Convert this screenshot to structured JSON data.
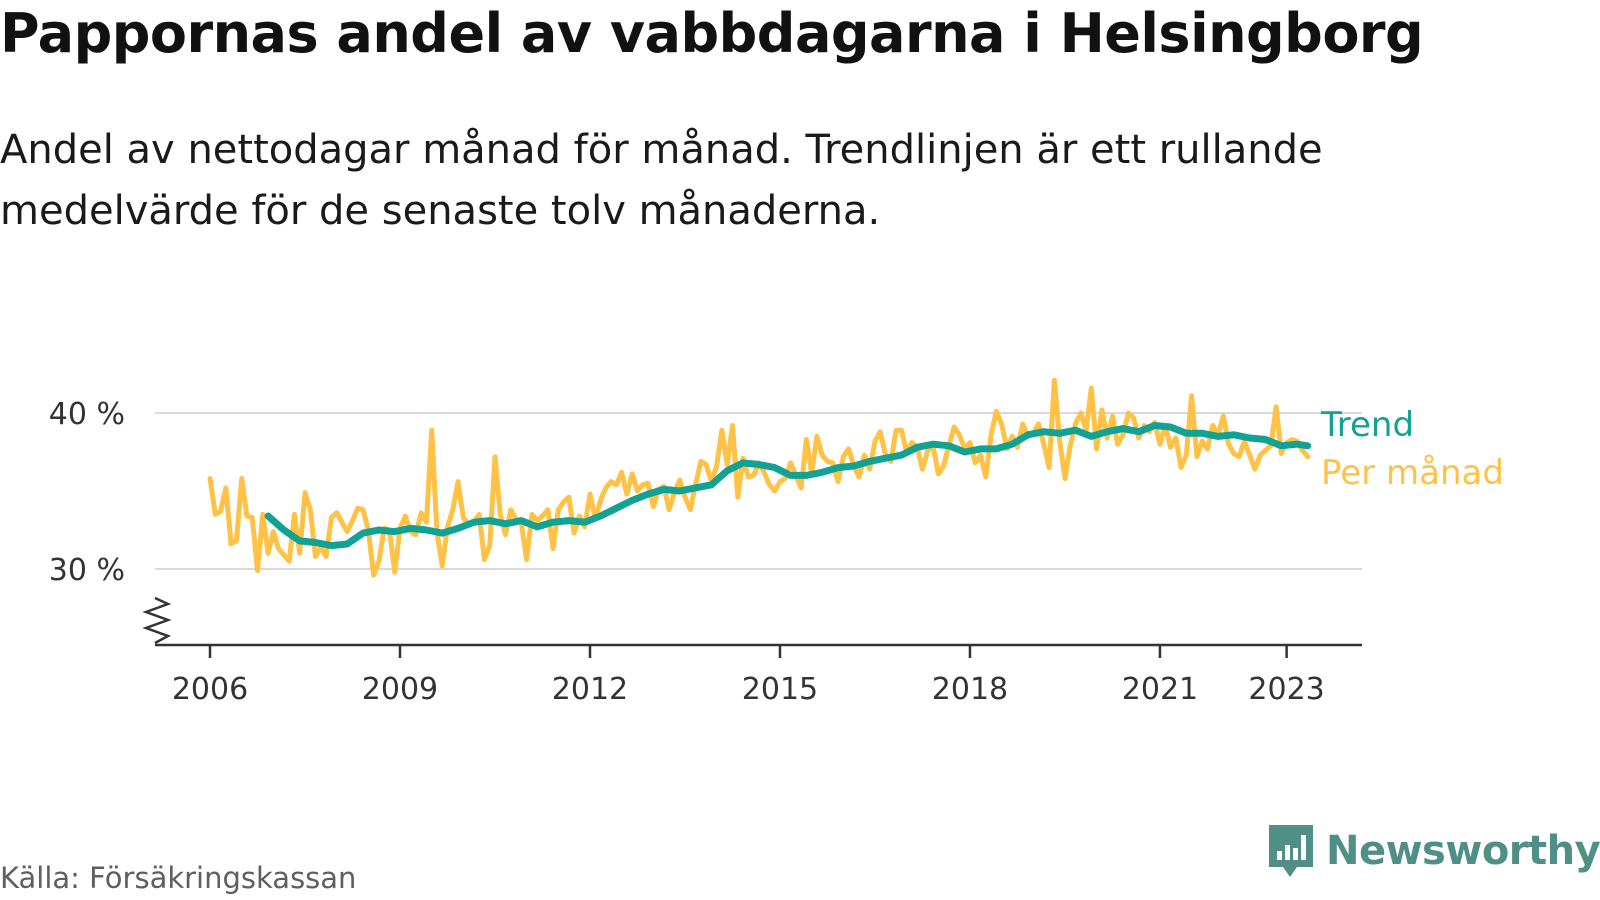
{
  "title": "Pappornas andel av vabbdagarna i Helsingborg",
  "subtitle": "Andel av nettodagar månad för månad. Trendlinjen är ett rullande medelvärde för de senaste tolv månaderna.",
  "source": "Källa: Försäkringskassan",
  "brand": {
    "name": "Newsworthy",
    "icon": "newsworthy-logo-icon"
  },
  "colors": {
    "trend": "#12a193",
    "monthly": "#ffc247",
    "grid": "#d9d9d9",
    "axis": "#333333"
  },
  "chart_data": {
    "type": "line",
    "title": "Pappornas andel av vabbdagarna i Helsingborg",
    "xlabel": "",
    "ylabel": "",
    "x_ticks": [
      2006,
      2009,
      2012,
      2015,
      2018,
      2021,
      2023
    ],
    "y_ticks": [
      30,
      40
    ],
    "y_tick_labels": [
      "30 %",
      "40 %"
    ],
    "ylim": [
      25,
      42.5
    ],
    "y_axis_break": true,
    "grid": true,
    "legend_placement": "right (direct labels at line ends)",
    "series": [
      {
        "name": "Trend",
        "color": "#12a193",
        "points": [
          [
            "2006-12",
            33.4
          ],
          [
            "2007-03",
            32.5
          ],
          [
            "2007-06",
            31.8
          ],
          [
            "2007-09",
            31.7
          ],
          [
            "2007-12",
            31.5
          ],
          [
            "2008-03",
            31.6
          ],
          [
            "2008-06",
            32.3
          ],
          [
            "2008-09",
            32.5
          ],
          [
            "2008-12",
            32.4
          ],
          [
            "2009-03",
            32.6
          ],
          [
            "2009-06",
            32.5
          ],
          [
            "2009-09",
            32.3
          ],
          [
            "2009-12",
            32.6
          ],
          [
            "2010-03",
            33.0
          ],
          [
            "2010-06",
            33.1
          ],
          [
            "2010-09",
            32.9
          ],
          [
            "2010-12",
            33.1
          ],
          [
            "2011-03",
            32.7
          ],
          [
            "2011-06",
            33.0
          ],
          [
            "2011-09",
            33.1
          ],
          [
            "2011-12",
            33.0
          ],
          [
            "2012-03",
            33.4
          ],
          [
            "2012-06",
            33.9
          ],
          [
            "2012-09",
            34.4
          ],
          [
            "2012-12",
            34.8
          ],
          [
            "2013-03",
            35.1
          ],
          [
            "2013-06",
            35.0
          ],
          [
            "2013-09",
            35.2
          ],
          [
            "2013-12",
            35.4
          ],
          [
            "2014-03",
            36.3
          ],
          [
            "2014-06",
            36.8
          ],
          [
            "2014-09",
            36.7
          ],
          [
            "2014-12",
            36.5
          ],
          [
            "2015-03",
            36.0
          ],
          [
            "2015-06",
            36.0
          ],
          [
            "2015-09",
            36.2
          ],
          [
            "2015-12",
            36.5
          ],
          [
            "2016-03",
            36.6
          ],
          [
            "2016-06",
            36.9
          ],
          [
            "2016-09",
            37.1
          ],
          [
            "2016-12",
            37.3
          ],
          [
            "2017-03",
            37.8
          ],
          [
            "2017-06",
            38.0
          ],
          [
            "2017-09",
            37.9
          ],
          [
            "2017-12",
            37.5
          ],
          [
            "2018-03",
            37.7
          ],
          [
            "2018-06",
            37.7
          ],
          [
            "2018-09",
            38.0
          ],
          [
            "2018-12",
            38.6
          ],
          [
            "2019-03",
            38.8
          ],
          [
            "2019-06",
            38.7
          ],
          [
            "2019-09",
            38.9
          ],
          [
            "2019-12",
            38.5
          ],
          [
            "2020-03",
            38.8
          ],
          [
            "2020-06",
            39.0
          ],
          [
            "2020-09",
            38.8
          ],
          [
            "2020-12",
            39.2
          ],
          [
            "2021-03",
            39.1
          ],
          [
            "2021-06",
            38.7
          ],
          [
            "2021-09",
            38.7
          ],
          [
            "2021-12",
            38.5
          ],
          [
            "2022-03",
            38.6
          ],
          [
            "2022-06",
            38.4
          ],
          [
            "2022-09",
            38.3
          ],
          [
            "2022-12",
            37.9
          ],
          [
            "2023-03",
            38.0
          ],
          [
            "2023-05",
            37.9
          ]
        ]
      },
      {
        "name": "Per månad",
        "color": "#ffc247",
        "points": [
          [
            "2006-01",
            35.8
          ],
          [
            "2006-02",
            33.5
          ],
          [
            "2006-03",
            33.7
          ],
          [
            "2006-04",
            35.2
          ],
          [
            "2006-05",
            31.6
          ],
          [
            "2006-06",
            31.8
          ],
          [
            "2006-07",
            35.8
          ],
          [
            "2006-08",
            33.4
          ],
          [
            "2006-09",
            33.3
          ],
          [
            "2006-10",
            29.9
          ],
          [
            "2006-11",
            33.5
          ],
          [
            "2006-12",
            31.0
          ],
          [
            "2007-01",
            32.4
          ],
          [
            "2007-02",
            31.3
          ],
          [
            "2007-03",
            30.9
          ],
          [
            "2007-04",
            30.5
          ],
          [
            "2007-05",
            33.5
          ],
          [
            "2007-06",
            31.0
          ],
          [
            "2007-07",
            34.9
          ],
          [
            "2007-08",
            33.8
          ],
          [
            "2007-09",
            30.8
          ],
          [
            "2007-10",
            31.4
          ],
          [
            "2007-11",
            30.8
          ],
          [
            "2007-12",
            33.3
          ],
          [
            "2008-01",
            33.6
          ],
          [
            "2008-02",
            33.0
          ],
          [
            "2008-03",
            32.4
          ],
          [
            "2008-04",
            33.1
          ],
          [
            "2008-05",
            33.9
          ],
          [
            "2008-06",
            33.8
          ],
          [
            "2008-07",
            32.5
          ],
          [
            "2008-08",
            29.6
          ],
          [
            "2008-09",
            30.5
          ],
          [
            "2008-10",
            32.6
          ],
          [
            "2008-11",
            32.5
          ],
          [
            "2008-12",
            29.8
          ],
          [
            "2009-01",
            32.6
          ],
          [
            "2009-02",
            33.4
          ],
          [
            "2009-03",
            32.4
          ],
          [
            "2009-04",
            32.2
          ],
          [
            "2009-05",
            33.6
          ],
          [
            "2009-06",
            33.0
          ],
          [
            "2009-07",
            38.9
          ],
          [
            "2009-08",
            32.4
          ],
          [
            "2009-09",
            30.2
          ],
          [
            "2009-10",
            32.7
          ],
          [
            "2009-11",
            33.8
          ],
          [
            "2009-12",
            35.6
          ],
          [
            "2010-01",
            33.3
          ],
          [
            "2010-02",
            32.8
          ],
          [
            "2010-03",
            33.0
          ],
          [
            "2010-04",
            33.5
          ],
          [
            "2010-05",
            30.6
          ],
          [
            "2010-06",
            31.5
          ],
          [
            "2010-07",
            37.2
          ],
          [
            "2010-08",
            33.5
          ],
          [
            "2010-09",
            32.2
          ],
          [
            "2010-10",
            33.8
          ],
          [
            "2010-11",
            33.2
          ],
          [
            "2010-12",
            32.9
          ],
          [
            "2011-01",
            30.6
          ],
          [
            "2011-02",
            33.5
          ],
          [
            "2011-03",
            33.1
          ],
          [
            "2011-04",
            33.4
          ],
          [
            "2011-05",
            33.8
          ],
          [
            "2011-06",
            31.3
          ],
          [
            "2011-07",
            33.8
          ],
          [
            "2011-08",
            34.3
          ],
          [
            "2011-09",
            34.6
          ],
          [
            "2011-10",
            32.3
          ],
          [
            "2011-11",
            33.4
          ],
          [
            "2011-12",
            32.7
          ],
          [
            "2012-01",
            34.8
          ],
          [
            "2012-02",
            33.2
          ],
          [
            "2012-03",
            34.4
          ],
          [
            "2012-04",
            35.2
          ],
          [
            "2012-05",
            35.6
          ],
          [
            "2012-06",
            35.4
          ],
          [
            "2012-07",
            36.2
          ],
          [
            "2012-08",
            34.8
          ],
          [
            "2012-09",
            36.1
          ],
          [
            "2012-10",
            35.0
          ],
          [
            "2012-11",
            35.4
          ],
          [
            "2012-12",
            35.5
          ],
          [
            "2013-01",
            34.0
          ],
          [
            "2013-02",
            35.1
          ],
          [
            "2013-03",
            35.3
          ],
          [
            "2013-04",
            33.8
          ],
          [
            "2013-05",
            34.9
          ],
          [
            "2013-06",
            35.7
          ],
          [
            "2013-07",
            34.6
          ],
          [
            "2013-08",
            33.8
          ],
          [
            "2013-09",
            35.4
          ],
          [
            "2013-10",
            36.9
          ],
          [
            "2013-11",
            36.7
          ],
          [
            "2013-12",
            35.6
          ],
          [
            "2014-01",
            36.6
          ],
          [
            "2014-02",
            38.9
          ],
          [
            "2014-03",
            36.7
          ],
          [
            "2014-04",
            39.2
          ],
          [
            "2014-05",
            34.6
          ],
          [
            "2014-06",
            37.1
          ],
          [
            "2014-07",
            35.9
          ],
          [
            "2014-08",
            36.0
          ],
          [
            "2014-09",
            36.8
          ],
          [
            "2014-10",
            36.2
          ],
          [
            "2014-11",
            35.4
          ],
          [
            "2014-12",
            35.0
          ],
          [
            "2015-01",
            35.6
          ],
          [
            "2015-02",
            35.8
          ],
          [
            "2015-03",
            36.8
          ],
          [
            "2015-04",
            36.0
          ],
          [
            "2015-05",
            35.2
          ],
          [
            "2015-06",
            38.3
          ],
          [
            "2015-07",
            36.1
          ],
          [
            "2015-08",
            38.5
          ],
          [
            "2015-09",
            37.3
          ],
          [
            "2015-10",
            36.9
          ],
          [
            "2015-11",
            36.8
          ],
          [
            "2015-12",
            35.6
          ],
          [
            "2016-01",
            37.2
          ],
          [
            "2016-02",
            37.7
          ],
          [
            "2016-03",
            36.6
          ],
          [
            "2016-04",
            35.9
          ],
          [
            "2016-05",
            37.3
          ],
          [
            "2016-06",
            36.4
          ],
          [
            "2016-07",
            38.2
          ],
          [
            "2016-08",
            38.8
          ],
          [
            "2016-09",
            37.3
          ],
          [
            "2016-10",
            36.9
          ],
          [
            "2016-11",
            38.9
          ],
          [
            "2016-12",
            38.9
          ],
          [
            "2017-01",
            37.5
          ],
          [
            "2017-02",
            38.1
          ],
          [
            "2017-03",
            37.8
          ],
          [
            "2017-04",
            36.4
          ],
          [
            "2017-05",
            37.6
          ],
          [
            "2017-06",
            37.9
          ],
          [
            "2017-07",
            36.1
          ],
          [
            "2017-08",
            36.6
          ],
          [
            "2017-09",
            37.9
          ],
          [
            "2017-10",
            39.1
          ],
          [
            "2017-11",
            38.6
          ],
          [
            "2017-12",
            37.7
          ],
          [
            "2018-01",
            38.1
          ],
          [
            "2018-02",
            36.8
          ],
          [
            "2018-03",
            37.3
          ],
          [
            "2018-04",
            35.9
          ],
          [
            "2018-05",
            38.6
          ],
          [
            "2018-06",
            40.1
          ],
          [
            "2018-07",
            39.3
          ],
          [
            "2018-08",
            37.7
          ],
          [
            "2018-09",
            38.5
          ],
          [
            "2018-10",
            37.8
          ],
          [
            "2018-11",
            39.3
          ],
          [
            "2018-12",
            38.5
          ],
          [
            "2019-01",
            38.7
          ],
          [
            "2019-02",
            39.3
          ],
          [
            "2019-03",
            38.0
          ],
          [
            "2019-04",
            36.5
          ],
          [
            "2019-05",
            42.1
          ],
          [
            "2019-06",
            38.2
          ],
          [
            "2019-07",
            35.8
          ],
          [
            "2019-08",
            37.9
          ],
          [
            "2019-09",
            39.3
          ],
          [
            "2019-10",
            40.0
          ],
          [
            "2019-11",
            38.9
          ],
          [
            "2019-12",
            41.6
          ],
          [
            "2020-01",
            37.7
          ],
          [
            "2020-02",
            40.2
          ],
          [
            "2020-03",
            38.4
          ],
          [
            "2020-04",
            39.8
          ],
          [
            "2020-05",
            38.0
          ],
          [
            "2020-06",
            38.6
          ],
          [
            "2020-07",
            40.0
          ],
          [
            "2020-08",
            39.7
          ],
          [
            "2020-09",
            38.4
          ],
          [
            "2020-10",
            39.2
          ],
          [
            "2020-11",
            38.8
          ],
          [
            "2020-12",
            39.4
          ],
          [
            "2021-01",
            38.0
          ],
          [
            "2021-02",
            39.2
          ],
          [
            "2021-03",
            37.8
          ],
          [
            "2021-04",
            38.4
          ],
          [
            "2021-05",
            36.5
          ],
          [
            "2021-06",
            37.3
          ],
          [
            "2021-07",
            41.1
          ],
          [
            "2021-08",
            37.2
          ],
          [
            "2021-09",
            38.2
          ],
          [
            "2021-10",
            37.7
          ],
          [
            "2021-11",
            39.2
          ],
          [
            "2021-12",
            38.6
          ],
          [
            "2022-01",
            39.8
          ],
          [
            "2022-02",
            38.0
          ],
          [
            "2022-03",
            37.4
          ],
          [
            "2022-04",
            37.2
          ],
          [
            "2022-05",
            38.2
          ],
          [
            "2022-06",
            37.3
          ],
          [
            "2022-07",
            36.4
          ],
          [
            "2022-08",
            37.3
          ],
          [
            "2022-09",
            37.6
          ],
          [
            "2022-10",
            37.9
          ],
          [
            "2022-11",
            40.4
          ],
          [
            "2022-12",
            37.4
          ],
          [
            "2023-01",
            38.1
          ],
          [
            "2023-02",
            38.3
          ],
          [
            "2023-03",
            38.2
          ],
          [
            "2023-04",
            37.6
          ],
          [
            "2023-05",
            37.2
          ]
        ]
      }
    ]
  }
}
